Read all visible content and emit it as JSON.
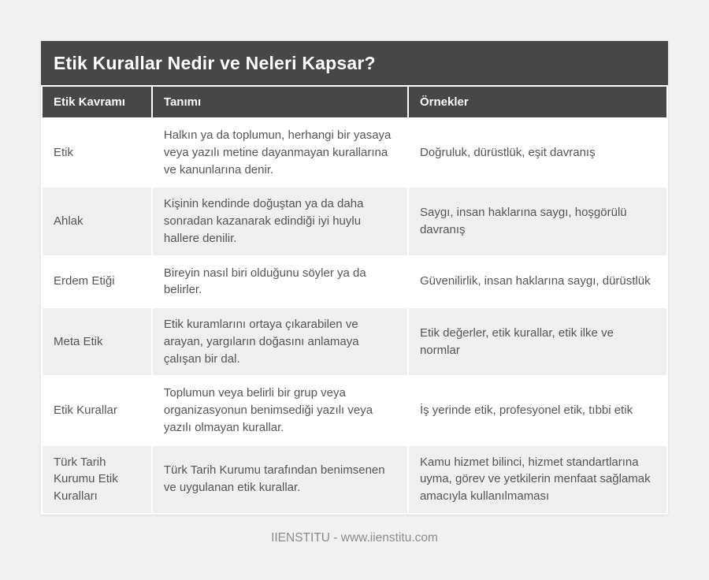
{
  "chart_data": {
    "type": "table",
    "title": "Etik Kurallar Nedir ve Neleri Kapsar?",
    "columns": [
      "Etik Kavramı",
      "Tanımı",
      "Örnekler"
    ],
    "rows": [
      [
        "Etik",
        "Halkın ya da toplumun, herhangi bir yasaya veya yazılı metine dayanmayan kurallarına ve kanunlarına denir.",
        "Doğruluk, dürüstlük, eşit davranış"
      ],
      [
        "Ahlak",
        "Kişinin kendinde doğuştan ya da daha sonradan kazanarak edindiği iyi huylu hallere denilir.",
        "Saygı, insan haklarına saygı, hoşgörülü davranış"
      ],
      [
        "Erdem Etiği",
        "Bireyin nasıl biri olduğunu söyler ya da belirler.",
        "Güvenilirlik, insan haklarına saygı, dürüstlük"
      ],
      [
        "Meta Etik",
        "Etik kuramlarını ortaya çıkarabilen ve arayan, yargıların doğasını anlamaya çalışan bir dal.",
        "Etik değerler, etik kurallar, etik ilke ve normlar"
      ],
      [
        "Etik Kurallar",
        "Toplumun veya belirli bir grup veya organizasyonun benimsediği yazılı veya yazılı olmayan kurallar.",
        "İş yerinde etik, profesyonel etik, tıbbi etik"
      ],
      [
        "Türk Tarih Kurumu Etik Kuralları",
        "Türk Tarih Kurumu tarafından benimsenen ve uygulanan etik kurallar.",
        "Kamu hizmet bilinci, hizmet standartlarına uyma, görev ve yetkilerin menfaat sağlamak amacıyla kullanılmaması"
      ]
    ],
    "footer": "IIENSTITU - www.iienstitu.com",
    "layout": {
      "legend": "none",
      "grid": "off",
      "zebra_striping": true
    }
  },
  "colors": {
    "header_bg": "#474747",
    "header_text": "#ffffff",
    "body_text": "#555555",
    "row_alt_bg": "#efefef",
    "page_bg": "#f1f1f1",
    "card_bg": "#ffffff",
    "footer_text": "#8c8c8c"
  }
}
